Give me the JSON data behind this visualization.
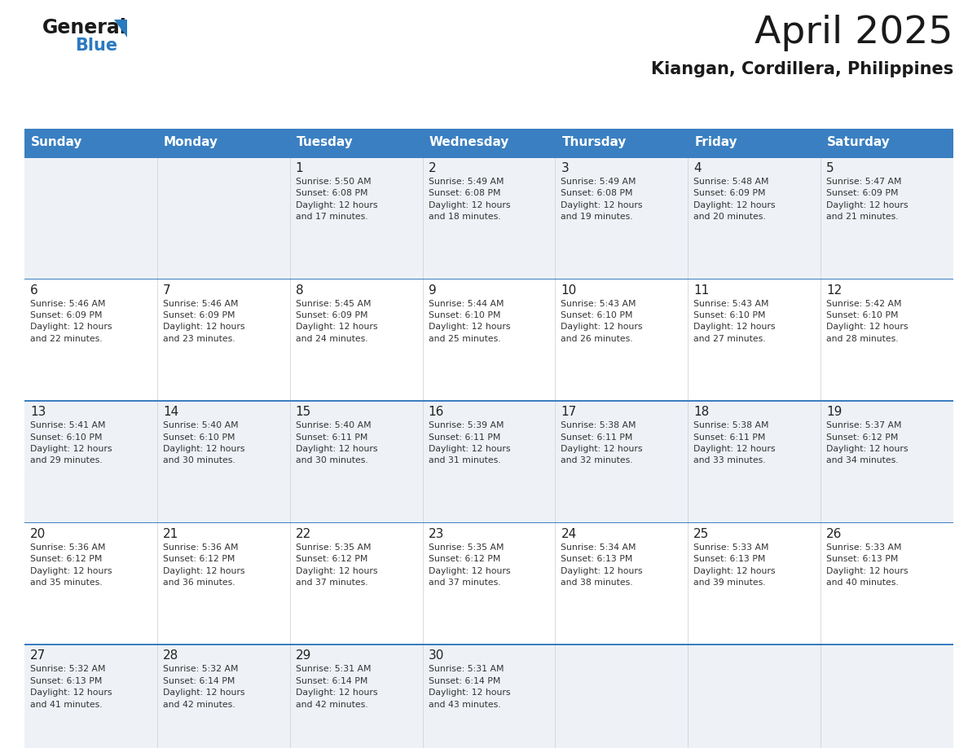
{
  "title": "April 2025",
  "subtitle": "Kiangan, Cordillera, Philippines",
  "days_of_week": [
    "Sunday",
    "Monday",
    "Tuesday",
    "Wednesday",
    "Thursday",
    "Friday",
    "Saturday"
  ],
  "header_bg_color": "#3a7fc1",
  "header_text_color": "#ffffff",
  "cell_bg_even": "#eef2f7",
  "cell_bg_odd": "#ffffff",
  "cell_text_color": "#333333",
  "day_num_color": "#222222",
  "border_color": "#3a7fc1",
  "row_sep_color": "#3a7fc1",
  "title_color": "#1a1a1a",
  "subtitle_color": "#1a1a1a",
  "logo_text_color": "#1a1a1a",
  "logo_blue_color": "#2a7abf",
  "weeks": [
    [
      {
        "day": null,
        "info": null
      },
      {
        "day": null,
        "info": null
      },
      {
        "day": 1,
        "info": "Sunrise: 5:50 AM\nSunset: 6:08 PM\nDaylight: 12 hours\nand 17 minutes."
      },
      {
        "day": 2,
        "info": "Sunrise: 5:49 AM\nSunset: 6:08 PM\nDaylight: 12 hours\nand 18 minutes."
      },
      {
        "day": 3,
        "info": "Sunrise: 5:49 AM\nSunset: 6:08 PM\nDaylight: 12 hours\nand 19 minutes."
      },
      {
        "day": 4,
        "info": "Sunrise: 5:48 AM\nSunset: 6:09 PM\nDaylight: 12 hours\nand 20 minutes."
      },
      {
        "day": 5,
        "info": "Sunrise: 5:47 AM\nSunset: 6:09 PM\nDaylight: 12 hours\nand 21 minutes."
      }
    ],
    [
      {
        "day": 6,
        "info": "Sunrise: 5:46 AM\nSunset: 6:09 PM\nDaylight: 12 hours\nand 22 minutes."
      },
      {
        "day": 7,
        "info": "Sunrise: 5:46 AM\nSunset: 6:09 PM\nDaylight: 12 hours\nand 23 minutes."
      },
      {
        "day": 8,
        "info": "Sunrise: 5:45 AM\nSunset: 6:09 PM\nDaylight: 12 hours\nand 24 minutes."
      },
      {
        "day": 9,
        "info": "Sunrise: 5:44 AM\nSunset: 6:10 PM\nDaylight: 12 hours\nand 25 minutes."
      },
      {
        "day": 10,
        "info": "Sunrise: 5:43 AM\nSunset: 6:10 PM\nDaylight: 12 hours\nand 26 minutes."
      },
      {
        "day": 11,
        "info": "Sunrise: 5:43 AM\nSunset: 6:10 PM\nDaylight: 12 hours\nand 27 minutes."
      },
      {
        "day": 12,
        "info": "Sunrise: 5:42 AM\nSunset: 6:10 PM\nDaylight: 12 hours\nand 28 minutes."
      }
    ],
    [
      {
        "day": 13,
        "info": "Sunrise: 5:41 AM\nSunset: 6:10 PM\nDaylight: 12 hours\nand 29 minutes."
      },
      {
        "day": 14,
        "info": "Sunrise: 5:40 AM\nSunset: 6:10 PM\nDaylight: 12 hours\nand 30 minutes."
      },
      {
        "day": 15,
        "info": "Sunrise: 5:40 AM\nSunset: 6:11 PM\nDaylight: 12 hours\nand 30 minutes."
      },
      {
        "day": 16,
        "info": "Sunrise: 5:39 AM\nSunset: 6:11 PM\nDaylight: 12 hours\nand 31 minutes."
      },
      {
        "day": 17,
        "info": "Sunrise: 5:38 AM\nSunset: 6:11 PM\nDaylight: 12 hours\nand 32 minutes."
      },
      {
        "day": 18,
        "info": "Sunrise: 5:38 AM\nSunset: 6:11 PM\nDaylight: 12 hours\nand 33 minutes."
      },
      {
        "day": 19,
        "info": "Sunrise: 5:37 AM\nSunset: 6:12 PM\nDaylight: 12 hours\nand 34 minutes."
      }
    ],
    [
      {
        "day": 20,
        "info": "Sunrise: 5:36 AM\nSunset: 6:12 PM\nDaylight: 12 hours\nand 35 minutes."
      },
      {
        "day": 21,
        "info": "Sunrise: 5:36 AM\nSunset: 6:12 PM\nDaylight: 12 hours\nand 36 minutes."
      },
      {
        "day": 22,
        "info": "Sunrise: 5:35 AM\nSunset: 6:12 PM\nDaylight: 12 hours\nand 37 minutes."
      },
      {
        "day": 23,
        "info": "Sunrise: 5:35 AM\nSunset: 6:12 PM\nDaylight: 12 hours\nand 37 minutes."
      },
      {
        "day": 24,
        "info": "Sunrise: 5:34 AM\nSunset: 6:13 PM\nDaylight: 12 hours\nand 38 minutes."
      },
      {
        "day": 25,
        "info": "Sunrise: 5:33 AM\nSunset: 6:13 PM\nDaylight: 12 hours\nand 39 minutes."
      },
      {
        "day": 26,
        "info": "Sunrise: 5:33 AM\nSunset: 6:13 PM\nDaylight: 12 hours\nand 40 minutes."
      }
    ],
    [
      {
        "day": 27,
        "info": "Sunrise: 5:32 AM\nSunset: 6:13 PM\nDaylight: 12 hours\nand 41 minutes."
      },
      {
        "day": 28,
        "info": "Sunrise: 5:32 AM\nSunset: 6:14 PM\nDaylight: 12 hours\nand 42 minutes."
      },
      {
        "day": 29,
        "info": "Sunrise: 5:31 AM\nSunset: 6:14 PM\nDaylight: 12 hours\nand 42 minutes."
      },
      {
        "day": 30,
        "info": "Sunrise: 5:31 AM\nSunset: 6:14 PM\nDaylight: 12 hours\nand 43 minutes."
      },
      {
        "day": null,
        "info": null
      },
      {
        "day": null,
        "info": null
      },
      {
        "day": null,
        "info": null
      }
    ]
  ]
}
